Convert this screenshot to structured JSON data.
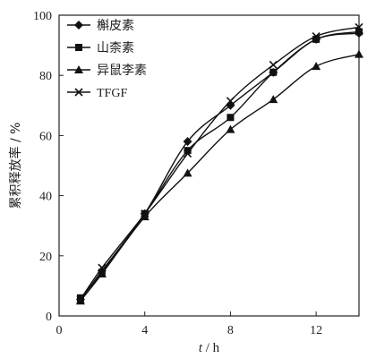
{
  "chart_data": {
    "type": "line",
    "xlabel": {
      "var": "t",
      "unit": " / h"
    },
    "ylabel": "累积释放率 / %",
    "xlim": [
      0,
      14
    ],
    "ylim": [
      0,
      100
    ],
    "xticks": [
      0,
      4,
      8,
      12
    ],
    "yticks": [
      0,
      20,
      40,
      60,
      80,
      100
    ],
    "grid": false,
    "legend_position": "top-left",
    "series": [
      {
        "name": "槲皮素",
        "marker": "diamond",
        "x": [
          1,
          2,
          4,
          6,
          8,
          10,
          12,
          14
        ],
        "y": [
          5.5,
          15.0,
          34.0,
          58.0,
          70.0,
          81.0,
          92.0,
          94.0
        ]
      },
      {
        "name": "山柰素",
        "marker": "square",
        "x": [
          1,
          2,
          4,
          6,
          8,
          10,
          12,
          14
        ],
        "y": [
          6.0,
          14.5,
          34.0,
          55.0,
          66.0,
          81.0,
          92.0,
          94.5
        ]
      },
      {
        "name": "异鼠李素",
        "marker": "triangle",
        "x": [
          1,
          2,
          4,
          6,
          8,
          10,
          12,
          14
        ],
        "y": [
          5.0,
          14.0,
          33.0,
          47.5,
          62.0,
          72.0,
          83.0,
          87.0
        ]
      },
      {
        "name": "TFGF",
        "marker": "x",
        "x": [
          1,
          2,
          4,
          6,
          8,
          10,
          12,
          14
        ],
        "y": [
          5.5,
          16.0,
          34.0,
          54.0,
          71.5,
          83.5,
          93.0,
          96.0
        ]
      }
    ]
  }
}
